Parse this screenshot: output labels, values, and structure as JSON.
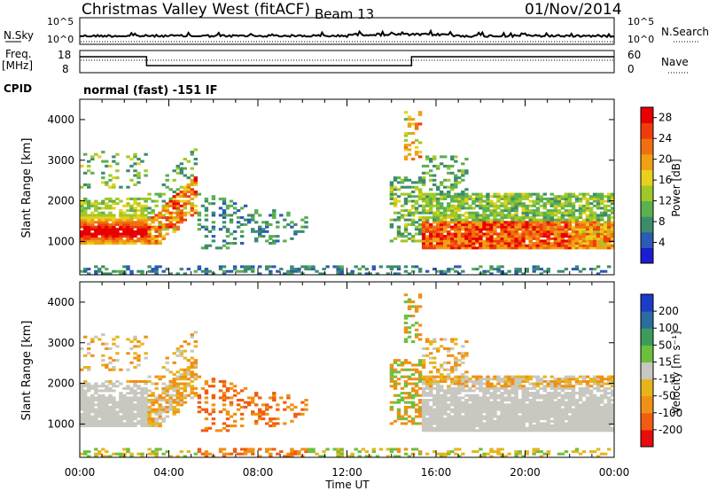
{
  "header": {
    "title": "Christmas Valley West (fitACF)",
    "beam": "Beam 13",
    "date": "01/Nov/2014"
  },
  "noise_panel": {
    "left_label": "N.Sky",
    "left_ticks": [
      "10^5",
      "10^0"
    ],
    "right_label": "N.Search",
    "right_ticks": [
      "10^5",
      "10^0"
    ]
  },
  "freq_panel": {
    "left_label_1": "Freq.",
    "left_label_2": "[MHz]",
    "left_ticks": [
      "18",
      "8"
    ],
    "right_label": "Nave",
    "right_ticks": [
      "60",
      "0"
    ]
  },
  "cpid": {
    "label": "CPID",
    "value": "normal (fast) -151 IF"
  },
  "chart_data": [
    {
      "type": "heatmap",
      "name": "power",
      "xlabel": "Time UT",
      "ylabel": "Slant Range [km]",
      "xlim": [
        0,
        24
      ],
      "ylim": [
        180,
        4500
      ],
      "x_ticks": [
        "00:00",
        "04:00",
        "08:00",
        "12:00",
        "16:00",
        "20:00",
        "00:00"
      ],
      "y_ticks": [
        "1000",
        "2000",
        "3000",
        "4000"
      ],
      "colorbar_label": "Power [dB]",
      "colorbar_ticks": [
        "4",
        "8",
        "12",
        "16",
        "20",
        "24",
        "28"
      ],
      "colorbar_range": [
        0,
        30
      ],
      "colors": [
        "#1c1cd0",
        "#2c5ab4",
        "#3c8c6c",
        "#5cb050",
        "#a0c828",
        "#e8d01c",
        "#f0a014",
        "#f07010",
        "#f03c0c",
        "#e80000"
      ]
    },
    {
      "type": "heatmap",
      "name": "velocity",
      "xlabel": "Time UT",
      "ylabel": "Slant Range [km]",
      "xlim": [
        0,
        24
      ],
      "ylim": [
        180,
        4500
      ],
      "x_ticks": [
        "00:00",
        "04:00",
        "08:00",
        "12:00",
        "16:00",
        "20:00",
        "00:00"
      ],
      "y_ticks": [
        "1000",
        "2000",
        "3000",
        "4000"
      ],
      "colorbar_label": "Velocity [m s⁻¹]",
      "colorbar_ticks": [
        "200",
        "100",
        "50",
        "15",
        "-15",
        "-50",
        "-100",
        "-200"
      ],
      "colors": [
        "#1c3cc8",
        "#2c6ca0",
        "#3c9c5c",
        "#6cc040",
        "#c8c8c0",
        "#e8b41c",
        "#f09014",
        "#f05c10",
        "#e80c0c"
      ],
      "ground_scatter_color": "#c8c8c0"
    }
  ]
}
